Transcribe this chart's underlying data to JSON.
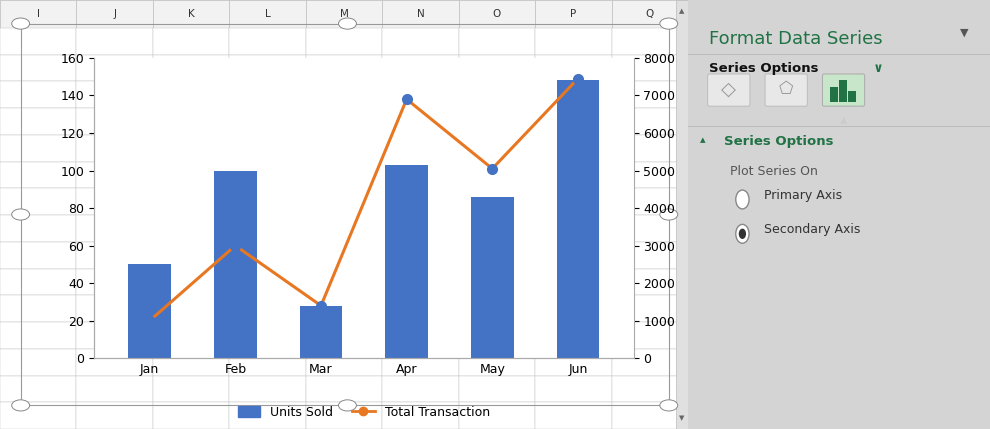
{
  "categories": [
    "Jan",
    "Feb",
    "Mar",
    "Apr",
    "May",
    "Jun"
  ],
  "units_sold": [
    50,
    100,
    28,
    103,
    86,
    148
  ],
  "total_transaction": [
    1000,
    3000,
    1400,
    6900,
    5050,
    7450
  ],
  "bar_color": "#4472C4",
  "line_color": "#E87722",
  "line_marker_facecolor": "#4472C4",
  "line_marker_edgecolor": "#4472C4",
  "primary_ylim": [
    0,
    160
  ],
  "primary_yticks": [
    0,
    20,
    40,
    60,
    80,
    100,
    120,
    140,
    160
  ],
  "secondary_ylim": [
    0,
    8000
  ],
  "secondary_yticks": [
    0,
    1000,
    2000,
    3000,
    4000,
    5000,
    6000,
    7000,
    8000
  ],
  "legend_units": "Units Sold",
  "legend_transaction": "Total Transaction",
  "bg_chart": "#FFFFFF",
  "grid_color": "#FFFFFF",
  "excel_bg": "#D4D4D4",
  "excel_cell_bg": "#FFFFFF",
  "excel_header_bg": "#F2F2F2",
  "excel_border": "#C0C0C0",
  "col_labels": [
    "I",
    "J",
    "K",
    "L",
    "M",
    "N",
    "O",
    "P",
    "Q"
  ],
  "panel_bg": "#F0F0F0",
  "panel_title": "Format Data Series",
  "panel_title_color": "#217346",
  "series_options_text": "Series Options",
  "plot_series_on_text": "Plot Series On",
  "primary_axis_text": "Primary Axis",
  "secondary_axis_text": "Secondary Axis",
  "figsize": [
    9.9,
    4.29
  ],
  "dpi": 100
}
